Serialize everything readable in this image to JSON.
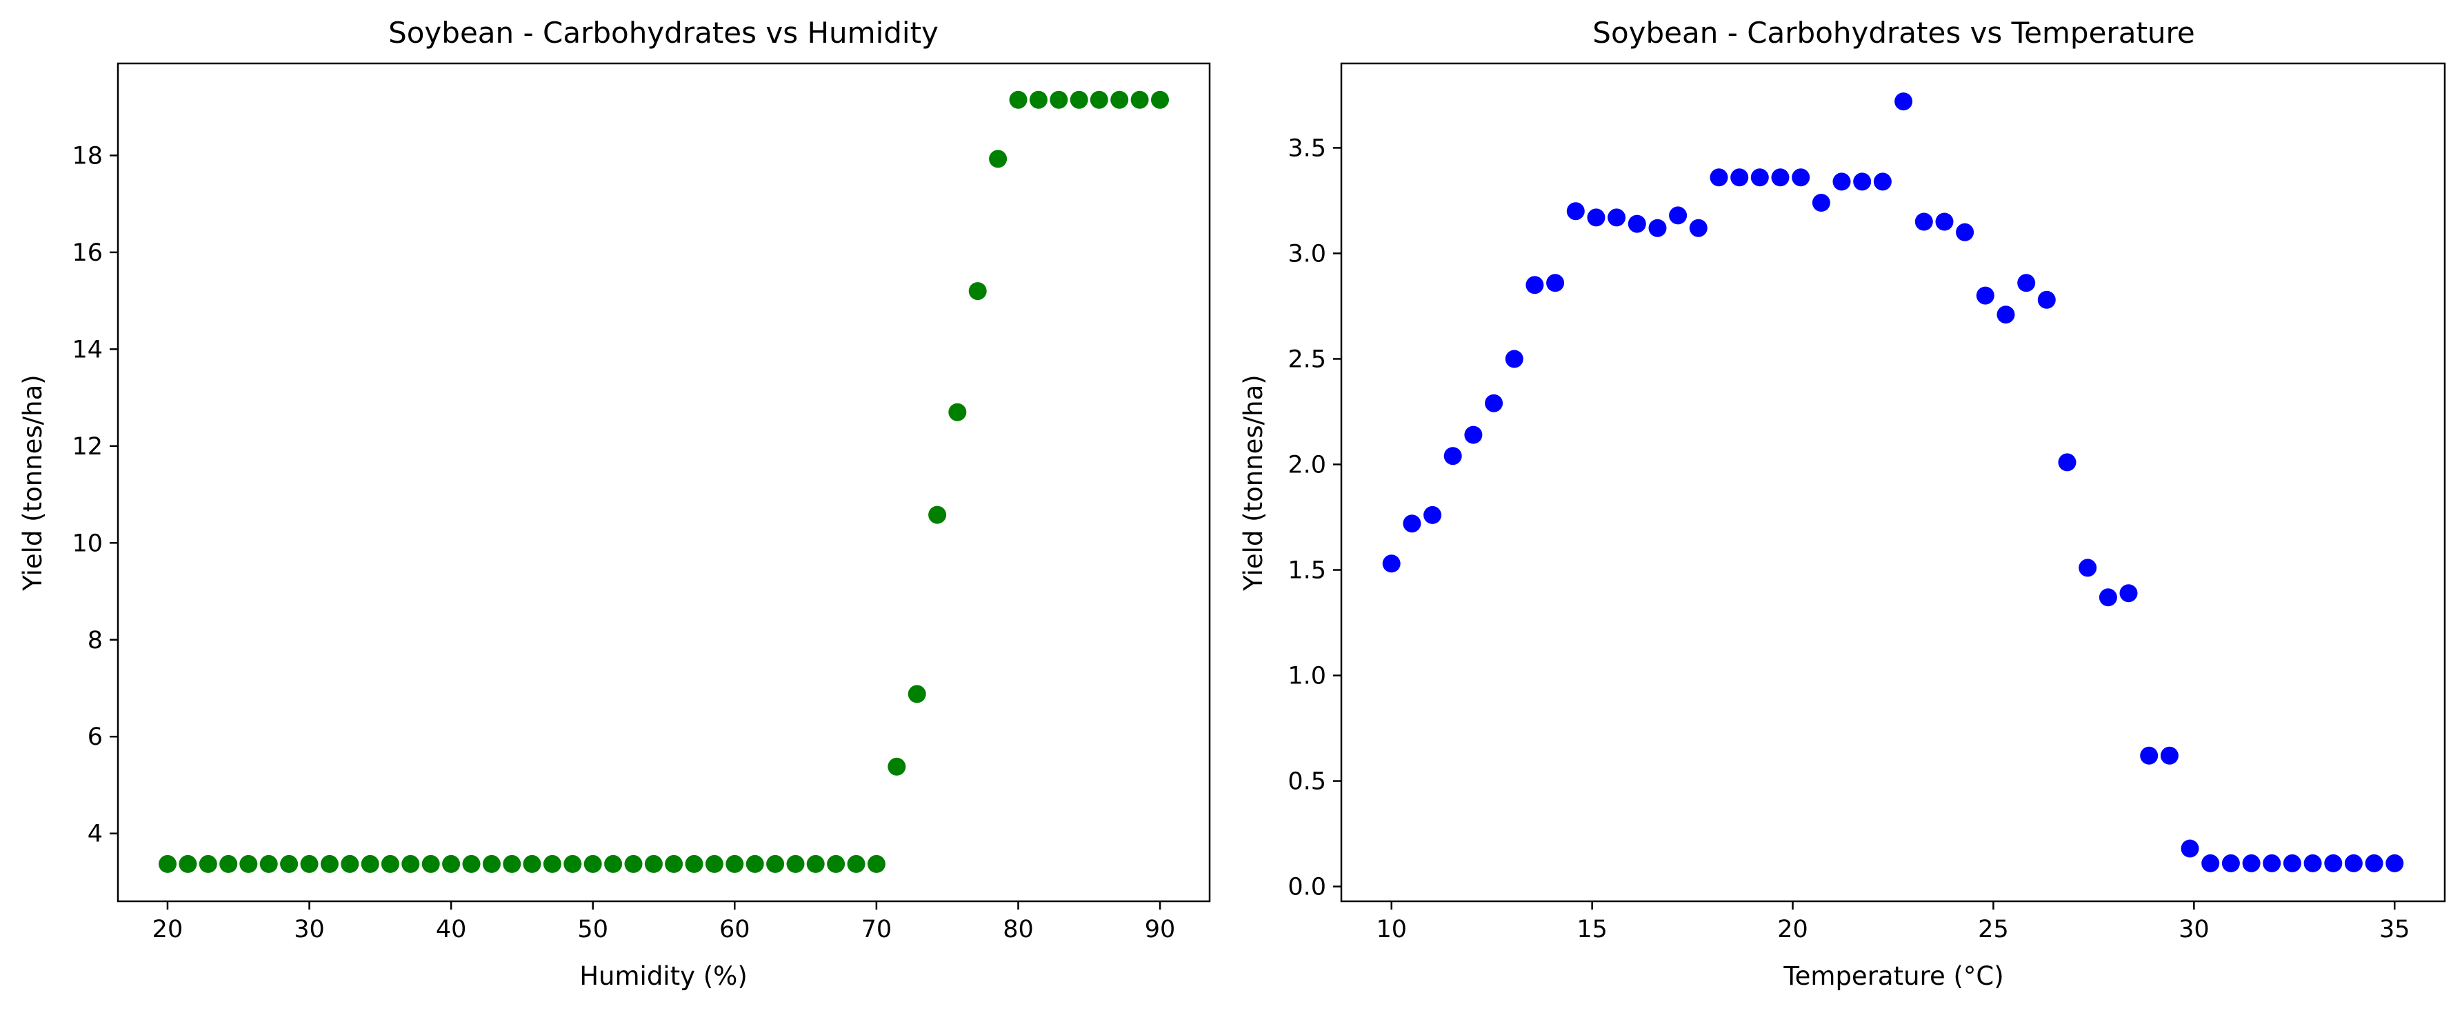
{
  "chart_data": [
    {
      "type": "scatter",
      "title": "Soybean - Carbohydrates vs Humidity",
      "xlabel": "Humidity (%)",
      "ylabel": "Yield (tonnes/ha)",
      "xlim": [
        16.5,
        93.5
      ],
      "ylim": [
        2.6,
        19.9
      ],
      "xticks": [
        20,
        30,
        40,
        50,
        60,
        70,
        80,
        90
      ],
      "yticks": [
        4,
        6,
        8,
        10,
        12,
        14,
        16,
        18
      ],
      "color": "#008000",
      "grid": false,
      "x": [
        20.0,
        21.43,
        22.86,
        24.29,
        25.71,
        27.14,
        28.57,
        30.0,
        31.43,
        32.86,
        34.29,
        35.71,
        37.14,
        38.57,
        40.0,
        41.43,
        42.86,
        44.29,
        45.71,
        47.14,
        48.57,
        50.0,
        51.43,
        52.86,
        54.29,
        55.71,
        57.14,
        58.57,
        60.0,
        61.43,
        62.86,
        64.29,
        65.71,
        67.14,
        68.57,
        70.0,
        71.43,
        72.86,
        74.29,
        75.71,
        77.14,
        78.57,
        80.0,
        81.43,
        82.86,
        84.29,
        85.71,
        87.14,
        88.57,
        90.0
      ],
      "y": [
        3.37,
        3.37,
        3.37,
        3.37,
        3.37,
        3.37,
        3.37,
        3.37,
        3.37,
        3.37,
        3.37,
        3.37,
        3.37,
        3.37,
        3.37,
        3.37,
        3.37,
        3.37,
        3.37,
        3.37,
        3.37,
        3.37,
        3.37,
        3.37,
        3.37,
        3.37,
        3.37,
        3.37,
        3.37,
        3.37,
        3.37,
        3.37,
        3.37,
        3.37,
        3.37,
        3.37,
        5.38,
        6.88,
        10.58,
        12.7,
        15.2,
        17.93,
        19.15,
        19.15,
        19.15,
        19.15,
        19.15,
        19.15,
        19.15,
        19.15
      ]
    },
    {
      "type": "scatter",
      "title": "Soybean - Carbohydrates vs Temperature",
      "xlabel": "Temperature (°C)",
      "ylabel": "Yield (tonnes/ha)",
      "xlim": [
        8.75,
        36.25
      ],
      "ylim": [
        -0.07,
        3.9
      ],
      "xticks": [
        10,
        15,
        20,
        25,
        30,
        35
      ],
      "yticks": [
        0.0,
        0.5,
        1.0,
        1.5,
        2.0,
        2.5,
        3.0,
        3.5
      ],
      "ytick_labels": [
        "0.0",
        "0.5",
        "1.0",
        "1.5",
        "2.0",
        "2.5",
        "3.0",
        "3.5"
      ],
      "color": "#0000ff",
      "grid": false,
      "x": [
        10.0,
        10.51,
        11.02,
        11.53,
        12.04,
        12.55,
        13.06,
        13.57,
        14.08,
        14.59,
        15.1,
        15.61,
        16.12,
        16.63,
        17.14,
        17.65,
        18.16,
        18.67,
        19.18,
        19.69,
        20.2,
        20.71,
        21.22,
        21.73,
        22.24,
        22.76,
        23.27,
        23.78,
        24.29,
        24.8,
        25.31,
        25.82,
        26.33,
        26.84,
        27.35,
        27.86,
        28.37,
        28.88,
        29.39,
        29.9,
        30.41,
        30.92,
        31.43,
        31.94,
        32.45,
        32.96,
        33.47,
        33.98,
        34.49,
        35.0
      ],
      "y": [
        1.53,
        1.72,
        1.76,
        2.04,
        2.14,
        2.29,
        2.5,
        2.85,
        2.86,
        3.2,
        3.17,
        3.17,
        3.14,
        3.12,
        3.18,
        3.12,
        3.36,
        3.36,
        3.36,
        3.36,
        3.36,
        3.24,
        3.34,
        3.34,
        3.34,
        3.72,
        3.15,
        3.15,
        3.1,
        2.8,
        2.71,
        2.86,
        2.78,
        2.01,
        1.51,
        1.37,
        1.39,
        0.62,
        0.62,
        0.18,
        0.11,
        0.11,
        0.11,
        0.11,
        0.11,
        0.11,
        0.11,
        0.11,
        0.11,
        0.11
      ]
    }
  ]
}
